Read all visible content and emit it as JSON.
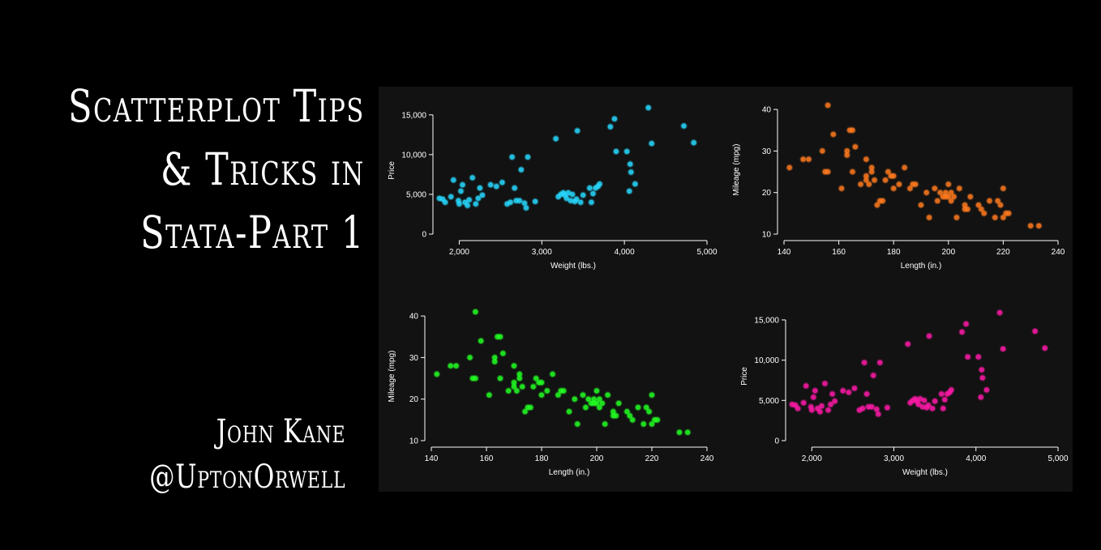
{
  "title": {
    "lines": [
      "Scatterplot Tips",
      "& Tricks in",
      "Stata-Part 1"
    ]
  },
  "author": {
    "name": "John Kane",
    "handle": "@UptonOrwell"
  },
  "colors": {
    "background": "#000000",
    "panel": "#121212",
    "cyan": "#27d9ff",
    "orange": "#ff7a1f",
    "green": "#22ff22",
    "magenta": "#ff1aa8"
  },
  "chart_data": [
    {
      "type": "scatter",
      "title": "",
      "xlabel": "Weight (lbs.)",
      "ylabel": "Price",
      "xlim": [
        1760,
        5000
      ],
      "ylim": [
        0,
        16000
      ],
      "xticks": [
        2000,
        3000,
        4000,
        5000
      ],
      "xtick_labels": [
        "2,000",
        "3,000",
        "4,000",
        "5,000"
      ],
      "yticks": [
        0,
        5000,
        10000,
        15000
      ],
      "ytick_labels": [
        "0",
        "5,000",
        "10,000",
        "15,000"
      ],
      "color": "#27d9ff",
      "points": [
        [
          1760,
          4500
        ],
        [
          1800,
          4400
        ],
        [
          1830,
          4000
        ],
        [
          1900,
          4700
        ],
        [
          1930,
          6800
        ],
        [
          1990,
          4200
        ],
        [
          2000,
          3800
        ],
        [
          2020,
          5400
        ],
        [
          2040,
          6200
        ],
        [
          2070,
          4000
        ],
        [
          2100,
          3600
        ],
        [
          2120,
          4300
        ],
        [
          2160,
          7100
        ],
        [
          2200,
          3800
        ],
        [
          2230,
          4500
        ],
        [
          2250,
          5800
        ],
        [
          2280,
          4900
        ],
        [
          2380,
          6200
        ],
        [
          2450,
          6000
        ],
        [
          2520,
          6500
        ],
        [
          2580,
          3800
        ],
        [
          2620,
          4000
        ],
        [
          2640,
          9700
        ],
        [
          2670,
          5800
        ],
        [
          2690,
          4200
        ],
        [
          2730,
          4200
        ],
        [
          2750,
          8100
        ],
        [
          2790,
          3900
        ],
        [
          2810,
          3300
        ],
        [
          2830,
          9700
        ],
        [
          2920,
          4100
        ],
        [
          3170,
          12000
        ],
        [
          3200,
          4700
        ],
        [
          3230,
          5000
        ],
        [
          3260,
          5200
        ],
        [
          3280,
          4900
        ],
        [
          3300,
          4500
        ],
        [
          3320,
          5200
        ],
        [
          3350,
          4200
        ],
        [
          3370,
          5000
        ],
        [
          3400,
          4100
        ],
        [
          3420,
          4400
        ],
        [
          3430,
          13000
        ],
        [
          3470,
          4000
        ],
        [
          3500,
          4900
        ],
        [
          3580,
          5800
        ],
        [
          3600,
          4000
        ],
        [
          3620,
          5100
        ],
        [
          3650,
          5800
        ],
        [
          3680,
          6000
        ],
        [
          3700,
          6300
        ],
        [
          3830,
          13500
        ],
        [
          3880,
          14500
        ],
        [
          3900,
          10400
        ],
        [
          4030,
          10400
        ],
        [
          4060,
          5400
        ],
        [
          4070,
          8800
        ],
        [
          4080,
          7800
        ],
        [
          4130,
          6300
        ],
        [
          4290,
          15900
        ],
        [
          4330,
          11400
        ],
        [
          4720,
          13600
        ],
        [
          4840,
          11500
        ]
      ]
    },
    {
      "type": "scatter",
      "title": "",
      "xlabel": "Length (in.)",
      "ylabel": "Mileage (mpg)",
      "xlim": [
        140,
        240
      ],
      "ylim": [
        10,
        41
      ],
      "xticks": [
        140,
        160,
        180,
        200,
        220,
        240
      ],
      "xtick_labels": [
        "140",
        "160",
        "180",
        "200",
        "220",
        "240"
      ],
      "yticks": [
        10,
        20,
        30,
        40
      ],
      "ytick_labels": [
        "10",
        "20",
        "30",
        "40"
      ],
      "color": "#ff7a1f",
      "points": [
        [
          142,
          26
        ],
        [
          147,
          28
        ],
        [
          149,
          28
        ],
        [
          154,
          30
        ],
        [
          155,
          25
        ],
        [
          156,
          25
        ],
        [
          156,
          41
        ],
        [
          158,
          34
        ],
        [
          161,
          21
        ],
        [
          163,
          29
        ],
        [
          163,
          30
        ],
        [
          164,
          35
        ],
        [
          165,
          35
        ],
        [
          165,
          25
        ],
        [
          166,
          31
        ],
        [
          168,
          22
        ],
        [
          170,
          28
        ],
        [
          170,
          23
        ],
        [
          170,
          24
        ],
        [
          171,
          22
        ],
        [
          172,
          25
        ],
        [
          172,
          26
        ],
        [
          173,
          23
        ],
        [
          174,
          17
        ],
        [
          175,
          18
        ],
        [
          176,
          18
        ],
        [
          177,
          23
        ],
        [
          178,
          25
        ],
        [
          179,
          24
        ],
        [
          180,
          24
        ],
        [
          180,
          21
        ],
        [
          182,
          22
        ],
        [
          184,
          26
        ],
        [
          186,
          21
        ],
        [
          187,
          22
        ],
        [
          188,
          22
        ],
        [
          190,
          17
        ],
        [
          192,
          20
        ],
        [
          193,
          14
        ],
        [
          195,
          21
        ],
        [
          196,
          18
        ],
        [
          197,
          20
        ],
        [
          198,
          19
        ],
        [
          199,
          19
        ],
        [
          199,
          20
        ],
        [
          200,
          19
        ],
        [
          200,
          22
        ],
        [
          201,
          20
        ],
        [
          201,
          18
        ],
        [
          202,
          19
        ],
        [
          203,
          14
        ],
        [
          204,
          21
        ],
        [
          206,
          17
        ],
        [
          206,
          16
        ],
        [
          207,
          16
        ],
        [
          208,
          19
        ],
        [
          211,
          17
        ],
        [
          212,
          16
        ],
        [
          213,
          15
        ],
        [
          215,
          18
        ],
        [
          217,
          14
        ],
        [
          218,
          18
        ],
        [
          219,
          17
        ],
        [
          220,
          21
        ],
        [
          220,
          14
        ],
        [
          221,
          15
        ],
        [
          222,
          15
        ],
        [
          230,
          12
        ],
        [
          233,
          12
        ]
      ]
    },
    {
      "type": "scatter",
      "title": "",
      "xlabel": "Length (in.)",
      "ylabel": "Mileage (mpg)",
      "xlim": [
        140,
        240
      ],
      "ylim": [
        10,
        41
      ],
      "xticks": [
        140,
        160,
        180,
        200,
        220,
        240
      ],
      "xtick_labels": [
        "140",
        "160",
        "180",
        "200",
        "220",
        "240"
      ],
      "yticks": [
        10,
        20,
        30,
        40
      ],
      "ytick_labels": [
        "10",
        "20",
        "30",
        "40"
      ],
      "color": "#22ff22",
      "points": [
        [
          142,
          26
        ],
        [
          147,
          28
        ],
        [
          149,
          28
        ],
        [
          154,
          30
        ],
        [
          155,
          25
        ],
        [
          156,
          25
        ],
        [
          156,
          41
        ],
        [
          158,
          34
        ],
        [
          161,
          21
        ],
        [
          163,
          29
        ],
        [
          163,
          30
        ],
        [
          164,
          35
        ],
        [
          165,
          35
        ],
        [
          165,
          25
        ],
        [
          166,
          31
        ],
        [
          168,
          22
        ],
        [
          170,
          28
        ],
        [
          170,
          23
        ],
        [
          170,
          24
        ],
        [
          171,
          22
        ],
        [
          172,
          25
        ],
        [
          172,
          26
        ],
        [
          173,
          23
        ],
        [
          174,
          17
        ],
        [
          175,
          18
        ],
        [
          176,
          18
        ],
        [
          177,
          23
        ],
        [
          178,
          25
        ],
        [
          179,
          24
        ],
        [
          180,
          24
        ],
        [
          180,
          21
        ],
        [
          182,
          22
        ],
        [
          184,
          26
        ],
        [
          186,
          21
        ],
        [
          187,
          22
        ],
        [
          188,
          22
        ],
        [
          190,
          17
        ],
        [
          192,
          20
        ],
        [
          193,
          14
        ],
        [
          195,
          21
        ],
        [
          196,
          18
        ],
        [
          197,
          20
        ],
        [
          198,
          19
        ],
        [
          199,
          19
        ],
        [
          199,
          20
        ],
        [
          200,
          19
        ],
        [
          200,
          22
        ],
        [
          201,
          20
        ],
        [
          201,
          18
        ],
        [
          202,
          19
        ],
        [
          203,
          14
        ],
        [
          204,
          21
        ],
        [
          206,
          17
        ],
        [
          206,
          16
        ],
        [
          207,
          16
        ],
        [
          208,
          19
        ],
        [
          211,
          17
        ],
        [
          212,
          16
        ],
        [
          213,
          15
        ],
        [
          215,
          18
        ],
        [
          217,
          14
        ],
        [
          218,
          18
        ],
        [
          219,
          17
        ],
        [
          220,
          21
        ],
        [
          220,
          14
        ],
        [
          221,
          15
        ],
        [
          222,
          15
        ],
        [
          230,
          12
        ],
        [
          233,
          12
        ]
      ]
    },
    {
      "type": "scatter",
      "title": "",
      "xlabel": "Weight (lbs.)",
      "ylabel": "Price",
      "xlim": [
        1760,
        5000
      ],
      "ylim": [
        0,
        16000
      ],
      "xticks": [
        2000,
        3000,
        4000,
        5000
      ],
      "xtick_labels": [
        "2,000",
        "3,000",
        "4,000",
        "5,000"
      ],
      "yticks": [
        0,
        5000,
        10000,
        15000
      ],
      "ytick_labels": [
        "0",
        "5,000",
        "10,000",
        "15,000"
      ],
      "color": "#ff1aa8",
      "points": [
        [
          1760,
          4500
        ],
        [
          1800,
          4400
        ],
        [
          1830,
          4000
        ],
        [
          1900,
          4700
        ],
        [
          1930,
          6800
        ],
        [
          1990,
          4200
        ],
        [
          2000,
          3800
        ],
        [
          2020,
          5400
        ],
        [
          2040,
          6200
        ],
        [
          2070,
          4000
        ],
        [
          2100,
          3600
        ],
        [
          2120,
          4300
        ],
        [
          2160,
          7100
        ],
        [
          2200,
          3800
        ],
        [
          2230,
          4500
        ],
        [
          2250,
          5800
        ],
        [
          2280,
          4900
        ],
        [
          2380,
          6200
        ],
        [
          2450,
          6000
        ],
        [
          2520,
          6500
        ],
        [
          2580,
          3800
        ],
        [
          2620,
          4000
        ],
        [
          2640,
          9700
        ],
        [
          2670,
          5800
        ],
        [
          2690,
          4200
        ],
        [
          2730,
          4200
        ],
        [
          2750,
          8100
        ],
        [
          2790,
          3900
        ],
        [
          2810,
          3300
        ],
        [
          2830,
          9700
        ],
        [
          2920,
          4100
        ],
        [
          3170,
          12000
        ],
        [
          3200,
          4700
        ],
        [
          3230,
          5000
        ],
        [
          3260,
          5200
        ],
        [
          3280,
          4900
        ],
        [
          3300,
          4500
        ],
        [
          3320,
          5200
        ],
        [
          3350,
          4200
        ],
        [
          3370,
          5000
        ],
        [
          3400,
          4100
        ],
        [
          3420,
          4400
        ],
        [
          3430,
          13000
        ],
        [
          3470,
          4000
        ],
        [
          3500,
          4900
        ],
        [
          3580,
          5800
        ],
        [
          3600,
          4000
        ],
        [
          3620,
          5100
        ],
        [
          3650,
          5800
        ],
        [
          3680,
          6000
        ],
        [
          3700,
          6300
        ],
        [
          3830,
          13500
        ],
        [
          3880,
          14500
        ],
        [
          3900,
          10400
        ],
        [
          4030,
          10400
        ],
        [
          4060,
          5400
        ],
        [
          4070,
          8800
        ],
        [
          4080,
          7800
        ],
        [
          4130,
          6300
        ],
        [
          4290,
          15900
        ],
        [
          4330,
          11400
        ],
        [
          4720,
          13600
        ],
        [
          4840,
          11500
        ]
      ]
    }
  ]
}
